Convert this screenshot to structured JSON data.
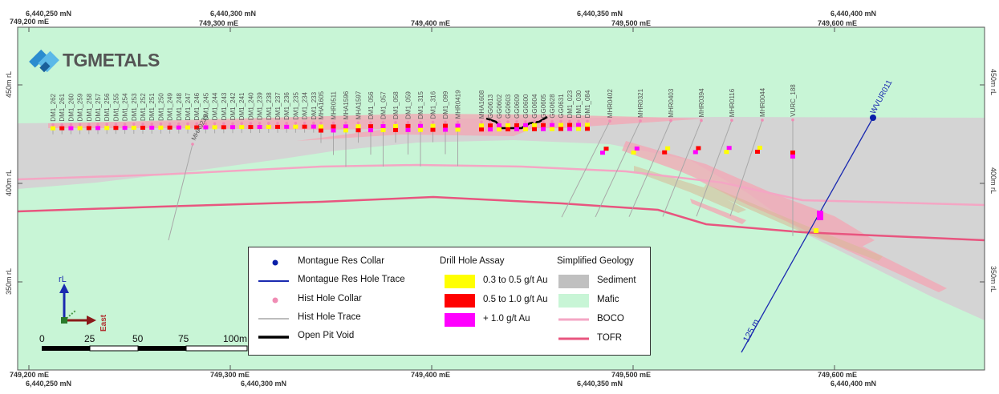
{
  "logo": {
    "text": "TGMETALS"
  },
  "top_coords": [
    {
      "a": "6,440,250 mN",
      "b": "749,200 mE"
    },
    {
      "a": "6,440,300 mN",
      "b": "749,300 mE"
    },
    {
      "a": "749,400 mE"
    },
    {
      "a": "6,440,350 mN",
      "b": "749,500 mE"
    },
    {
      "a": "6,440,400 mN",
      "b": "749,600 mE"
    }
  ],
  "bottom_coords": [
    {
      "a": "749,200 mE",
      "b": "6,440,250 mN"
    },
    {
      "a": "749,300 mE",
      "b": "6,440,300 mN"
    },
    {
      "a": "749,400 mE"
    },
    {
      "a": "749,500 mE",
      "b": "6,440,350 mN"
    },
    {
      "a": "749,600 mE",
      "b": "6,440,400 mN"
    }
  ],
  "rl_labels": [
    "450m rL",
    "400m rL",
    "350m rL"
  ],
  "hist_holes": [
    "DM1_262",
    "DM1_261",
    "DM1_260",
    "DM1_259",
    "DM1_258",
    "DM1_257",
    "DM1_256",
    "DM1_255",
    "DM1_254",
    "DM1_253",
    "DM1_252",
    "DM1_251",
    "DM1_250",
    "DM1_249",
    "DM1_248",
    "DM1_247",
    "DM1_246",
    "DM1_245",
    "DM1_244",
    "DM1_243",
    "DM1_242",
    "DM1_241",
    "DM1_240",
    "DM1_239",
    "DM1_238",
    "DM1_237",
    "DM1_236",
    "DM1_235",
    "DM1_234",
    "DM1_233",
    "MHA1605",
    "MHR0511",
    "MHA1596",
    "MHA1597",
    "DM1_056",
    "DM1_057",
    "DM1_058",
    "DM1_059",
    "DM1_315",
    "DM1_316",
    "DM1_099",
    "MHR0419",
    "MHA1608",
    "GG0613",
    "GG0602",
    "GG0603",
    "GG0609",
    "GG0600",
    "GG0604",
    "GG0605",
    "GG0628",
    "GG0631",
    "DM1_023",
    "DM1_030",
    "DM1_084",
    "MHR0402",
    "MHR0321",
    "MHR0403",
    "MHR0394",
    "MHR0116",
    "MHR0044",
    "VURC_188",
    "MHA0235"
  ],
  "montague_hole": "WVUR011",
  "trace_length": "125 m",
  "north_arrow": {
    "up": "rL",
    "right": "East"
  },
  "scale": {
    "ticks": [
      "0",
      "25",
      "50",
      "75",
      "100m"
    ]
  },
  "legend": {
    "col1": [
      {
        "label": "Montague Res Collar",
        "color": "#0a1fa8"
      },
      {
        "label": "Montague Res Hole Trace",
        "color": "#1a2ab0"
      },
      {
        "label": "Hist Hole Collar",
        "color": "#f08cb4"
      },
      {
        "label": "Hist Hole Trace",
        "color": "#bdbdbd"
      },
      {
        "label": "Open Pit Void",
        "color": "#000000"
      }
    ],
    "col2_title": "Drill Hole Assay",
    "col2": [
      {
        "label": "0.3 to 0.5 g/t Au",
        "color": "#ffff00"
      },
      {
        "label": "0.5 to 1.0 g/t Au",
        "color": "#ff0000"
      },
      {
        "label": "+ 1.0 g/t Au",
        "color": "#ff00ff"
      }
    ],
    "col3_title": "Simplified Geology",
    "col3": [
      {
        "label": "Sediment",
        "color": "#c0c0c0"
      },
      {
        "label": "Mafic",
        "color": "#c8f5d6"
      },
      {
        "label": "BOCO",
        "color": "#f4a6c4"
      },
      {
        "label": "TOFR",
        "color": "#e8557f"
      }
    ]
  }
}
